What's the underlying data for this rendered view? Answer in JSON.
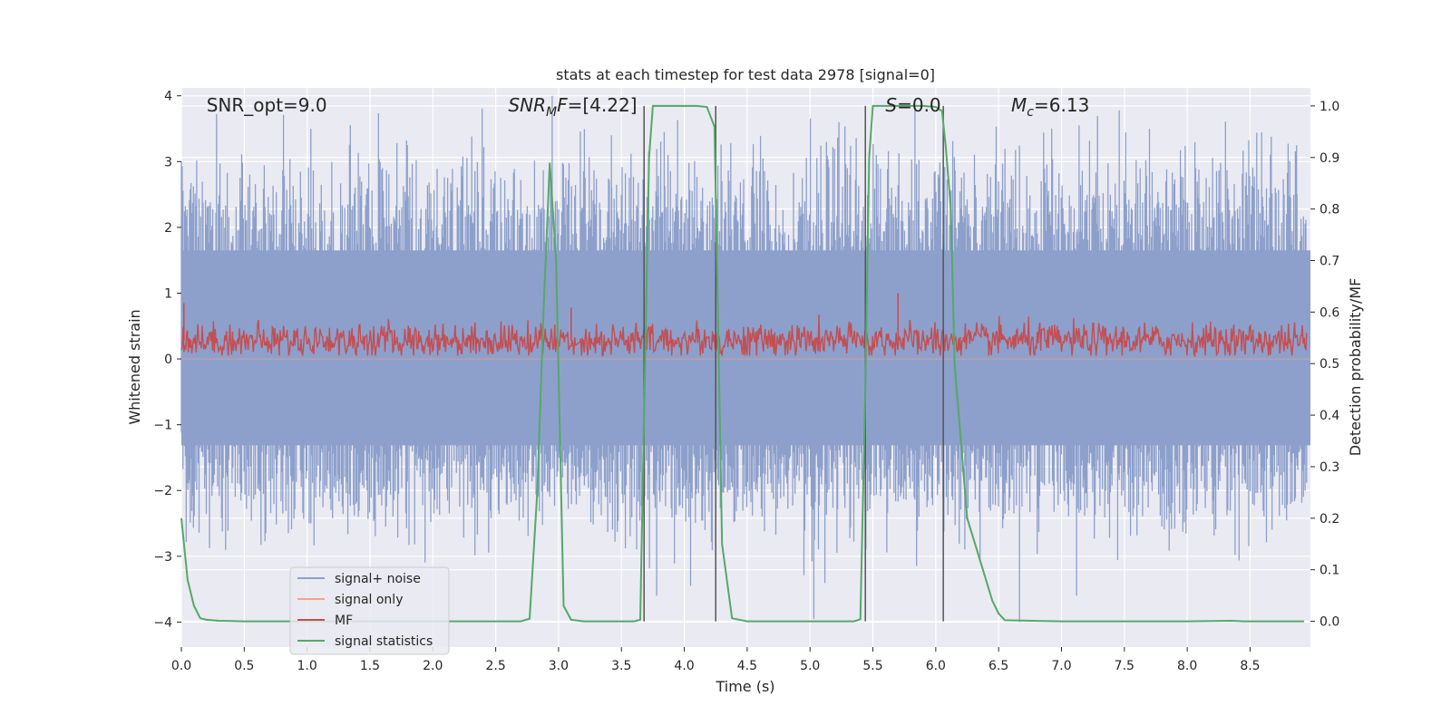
{
  "chart_data": {
    "type": "line",
    "title": "stats at each timestep for test data 2978 [signal=0]",
    "xlabel": "Time (s)",
    "ylabel": "Whitened strain",
    "ylabel_right": "Detection probability/MF",
    "xlim": [
      0.0,
      8.98
    ],
    "ylim": [
      -4.38,
      4.12
    ],
    "ylim_right": [
      -0.05,
      1.035
    ],
    "xticks": [
      0.0,
      0.5,
      1.0,
      1.5,
      2.0,
      2.5,
      3.0,
      3.5,
      4.0,
      4.5,
      5.0,
      5.5,
      6.0,
      6.5,
      7.0,
      7.5,
      8.0,
      8.5
    ],
    "xtick_labels": [
      "0.0",
      "0.5",
      "1.0",
      "1.5",
      "2.0",
      "2.5",
      "3.0",
      "3.5",
      "4.0",
      "4.5",
      "5.0",
      "5.5",
      "6.0",
      "6.5",
      "7.0",
      "7.5",
      "8.0",
      "8.5"
    ],
    "yticks": [
      4,
      3,
      2,
      1,
      0,
      -1,
      -2,
      -3,
      -4
    ],
    "ytick_labels": [
      "4",
      "3",
      "2",
      "1",
      "0",
      "−1",
      "−2",
      "−3",
      "−4"
    ],
    "yticks_right": [
      1.0,
      0.9,
      0.8,
      0.7,
      0.6,
      0.5,
      0.4,
      0.3,
      0.2,
      0.1,
      0.0
    ],
    "ytick_labels_right": [
      "1.0",
      "0.9",
      "0.8",
      "0.7",
      "0.6",
      "0.5",
      "0.4",
      "0.3",
      "0.2",
      "0.1",
      "0.0"
    ],
    "grid": true,
    "legend_position": "lower-left",
    "legend": [
      {
        "label": "signal+ noise",
        "color": "#8da0cb"
      },
      {
        "label": "signal only",
        "color": "#f4a582"
      },
      {
        "label": "MF",
        "color": "#c44e52"
      },
      {
        "label": "signal statistics",
        "color": "#55a868"
      }
    ],
    "annotations": [
      {
        "key": "snr_opt",
        "parts": [
          {
            "text": "SNR_opt=9.0",
            "italic": false
          }
        ]
      },
      {
        "key": "snr_mf",
        "parts": [
          {
            "text": "SNR",
            "italic": true
          },
          {
            "text": "M",
            "italic": true,
            "sub": true
          },
          {
            "text": "F",
            "italic": true
          },
          {
            "text": "=[4.22]",
            "italic": false
          }
        ]
      },
      {
        "key": "s_value",
        "parts": [
          {
            "text": "S",
            "italic": true
          },
          {
            "text": "=0.0",
            "italic": false
          }
        ]
      },
      {
        "key": "mc_value",
        "parts": [
          {
            "text": "M",
            "italic": true
          },
          {
            "text": "c",
            "italic": true,
            "sub": true
          },
          {
            "text": "=6.13",
            "italic": false
          }
        ]
      }
    ],
    "annotation_x": [
      0.2,
      2.6,
      5.6,
      6.6
    ],
    "vertical_lines_x": [
      3.68,
      4.25,
      5.44,
      6.06
    ],
    "series": [
      {
        "name": "signal+ noise",
        "axis": "left",
        "style": "noise-band",
        "color": "#8da0cb",
        "envelope_typical": [
          -1.75,
          2.2
        ],
        "approx_peak_values": [
          {
            "x": 0.28,
            "y": 3.72
          },
          {
            "x": 1.03,
            "y": 3.5
          },
          {
            "x": 3.42,
            "y": 3.4
          },
          {
            "x": 3.84,
            "y": 3.45
          },
          {
            "x": 5.23,
            "y": 3.6
          },
          {
            "x": 7.14,
            "y": 3.55
          },
          {
            "x": 7.7,
            "y": 3.5
          },
          {
            "x": 8.87,
            "y": 3.25
          },
          {
            "x": 3.78,
            "y": -3.6
          },
          {
            "x": 5.03,
            "y": -3.95
          },
          {
            "x": 7.12,
            "y": -3.6
          },
          {
            "x": 4.05,
            "y": -3.45
          }
        ]
      },
      {
        "name": "signal only",
        "axis": "left",
        "color": "#f4a582",
        "x": [
          0.0,
          8.98
        ],
        "y": [
          0.0,
          0.0
        ]
      },
      {
        "name": "MF",
        "axis": "left",
        "style": "noise-band",
        "color": "#c44e52",
        "center": 0.28,
        "envelope_typical": [
          0.05,
          0.55
        ],
        "approx_peak_values": [
          {
            "x": 0.02,
            "y": 0.85
          },
          {
            "x": 5.7,
            "y": 1.0
          },
          {
            "x": 3.1,
            "y": 0.78
          }
        ]
      },
      {
        "name": "signal statistics",
        "axis": "right",
        "color": "#55a868",
        "x": [
          0.0,
          0.05,
          0.1,
          0.15,
          0.2,
          0.3,
          0.5,
          1.0,
          2.0,
          2.7,
          2.77,
          2.83,
          2.88,
          2.93,
          2.98,
          3.04,
          3.1,
          3.2,
          3.4,
          3.6,
          3.65,
          3.68,
          3.72,
          3.75,
          3.9,
          4.1,
          4.18,
          4.24,
          4.26,
          4.3,
          4.38,
          4.5,
          5.0,
          5.35,
          5.4,
          5.44,
          5.47,
          5.5,
          5.6,
          5.9,
          6.0,
          6.05,
          6.08,
          6.12,
          6.15,
          6.25,
          6.35,
          6.45,
          6.5,
          6.55,
          7.0,
          8.0,
          8.35,
          8.45,
          8.93
        ],
        "y": [
          0.2,
          0.08,
          0.03,
          0.006,
          0.003,
          0.001,
          0.0,
          0.0,
          0.0,
          0.0,
          0.005,
          0.25,
          0.6,
          0.89,
          0.7,
          0.03,
          0.003,
          0.0,
          0.0,
          0.0,
          0.003,
          0.4,
          0.9,
          1.0,
          1.0,
          1.0,
          0.998,
          0.96,
          0.7,
          0.15,
          0.006,
          0.0,
          0.0,
          0.0,
          0.004,
          0.45,
          0.9,
          1.0,
          1.0,
          1.0,
          0.998,
          0.99,
          0.92,
          0.8,
          0.5,
          0.2,
          0.12,
          0.04,
          0.015,
          0.002,
          0.0,
          0.0,
          0.001,
          0.0,
          0.0
        ]
      }
    ]
  }
}
